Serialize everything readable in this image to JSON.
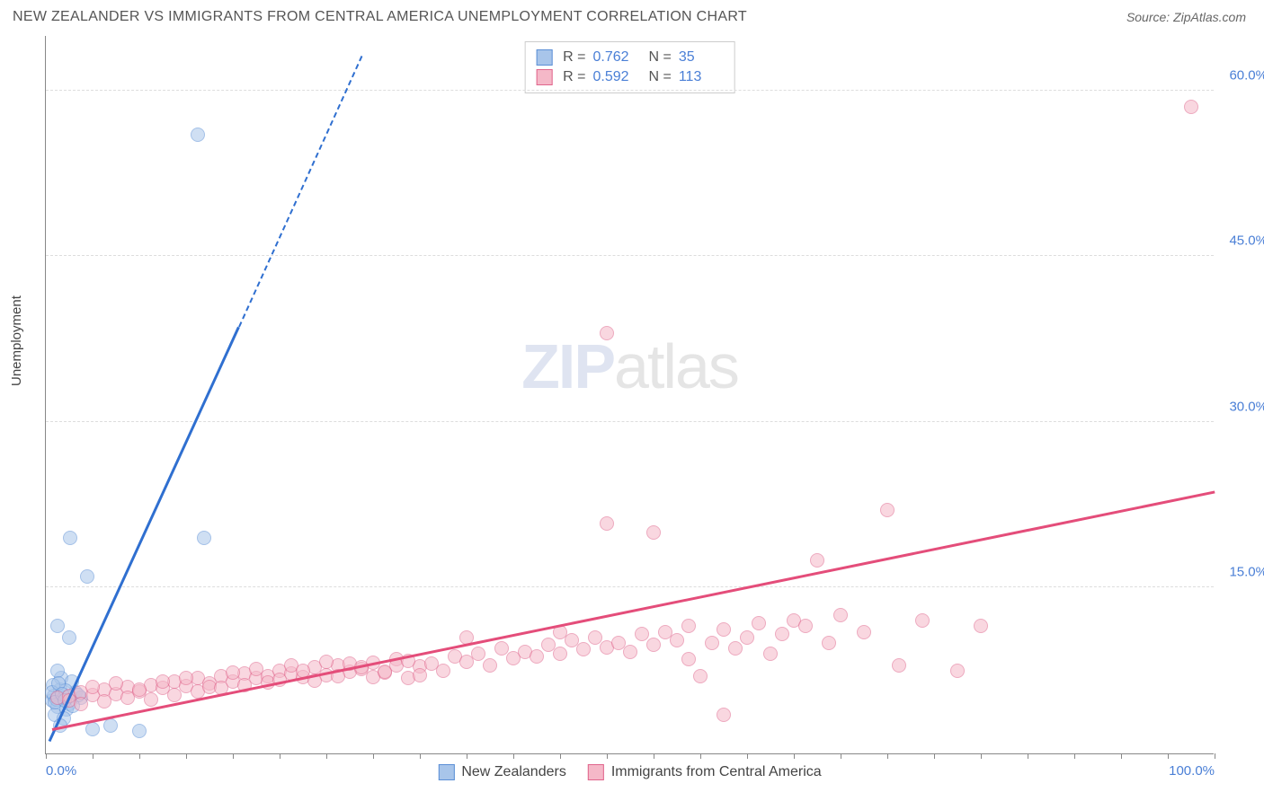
{
  "title": "NEW ZEALANDER VS IMMIGRANTS FROM CENTRAL AMERICA UNEMPLOYMENT CORRELATION CHART",
  "source": "Source: ZipAtlas.com",
  "ylabel": "Unemployment",
  "watermark_zip": "ZIP",
  "watermark_atlas": "atlas",
  "chart": {
    "type": "scatter",
    "background_color": "#ffffff",
    "grid_color": "#dddddd",
    "axis_color": "#888888",
    "xlim": [
      0,
      100
    ],
    "ylim": [
      0,
      65
    ],
    "yticks": [
      15,
      30,
      45,
      60
    ],
    "ytick_labels": [
      "15.0%",
      "30.0%",
      "45.0%",
      "60.0%"
    ],
    "ytick_color": "#4a7fd6",
    "xtick_major": [
      0,
      100
    ],
    "xtick_major_labels": [
      "0.0%",
      "100.0%"
    ],
    "xtick_minor_step": 4,
    "point_radius": 8,
    "series": [
      {
        "name": "New Zealanders",
        "fill": "#a8c5ea",
        "stroke": "#5b8fd6",
        "fill_opacity": 0.55,
        "R": "0.762",
        "N": "35",
        "trend": {
          "x1": 0.3,
          "y1": 1.0,
          "x2": 16.5,
          "y2": 38.5,
          "color": "#2f6fd0",
          "dash_to_x": 27,
          "dash_to_y": 63
        },
        "points": [
          [
            0.5,
            4.8
          ],
          [
            0.7,
            5.2
          ],
          [
            1.0,
            4.2
          ],
          [
            1.2,
            5.8
          ],
          [
            0.8,
            3.5
          ],
          [
            1.5,
            5.0
          ],
          [
            2.0,
            4.5
          ],
          [
            1.3,
            6.8
          ],
          [
            2.5,
            5.5
          ],
          [
            0.6,
            6.2
          ],
          [
            1.8,
            4.0
          ],
          [
            1.0,
            7.5
          ],
          [
            3.0,
            5.0
          ],
          [
            2.2,
            6.5
          ],
          [
            1.5,
            3.2
          ],
          [
            3.5,
            16.0
          ],
          [
            1.0,
            11.5
          ],
          [
            2.0,
            10.5
          ],
          [
            1.2,
            2.5
          ],
          [
            4.0,
            2.2
          ],
          [
            5.5,
            2.5
          ],
          [
            8.0,
            2.0
          ],
          [
            2.8,
            5.3
          ],
          [
            0.9,
            4.9
          ],
          [
            1.7,
            5.7
          ],
          [
            2.3,
            4.3
          ],
          [
            0.5,
            5.5
          ],
          [
            1.1,
            6.3
          ],
          [
            1.9,
            5.1
          ],
          [
            0.8,
            4.6
          ],
          [
            1.4,
            5.4
          ],
          [
            2.1,
            19.5
          ],
          [
            13.0,
            56.0
          ],
          [
            13.5,
            19.5
          ],
          [
            1.6,
            4.8
          ]
        ]
      },
      {
        "name": "Immigrants from Central America",
        "fill": "#f5b8c8",
        "stroke": "#e0658c",
        "fill_opacity": 0.55,
        "R": "0.592",
        "N": "113",
        "trend": {
          "x1": 0.5,
          "y1": 2.0,
          "x2": 100,
          "y2": 23.5,
          "color": "#e44d7a"
        },
        "points": [
          [
            1,
            5.0
          ],
          [
            2,
            5.2
          ],
          [
            3,
            5.5
          ],
          [
            4,
            5.3
          ],
          [
            5,
            5.8
          ],
          [
            6,
            5.4
          ],
          [
            7,
            6.0
          ],
          [
            8,
            5.6
          ],
          [
            9,
            6.2
          ],
          [
            10,
            5.9
          ],
          [
            11,
            6.5
          ],
          [
            12,
            6.1
          ],
          [
            13,
            6.8
          ],
          [
            14,
            6.3
          ],
          [
            15,
            7.0
          ],
          [
            16,
            6.5
          ],
          [
            17,
            7.2
          ],
          [
            18,
            6.8
          ],
          [
            19,
            7.0
          ],
          [
            20,
            7.5
          ],
          [
            21,
            7.2
          ],
          [
            22,
            6.9
          ],
          [
            23,
            7.8
          ],
          [
            24,
            7.1
          ],
          [
            25,
            8.0
          ],
          [
            26,
            7.4
          ],
          [
            27,
            7.6
          ],
          [
            28,
            8.2
          ],
          [
            29,
            7.3
          ],
          [
            30,
            8.5
          ],
          [
            31,
            6.8
          ],
          [
            32,
            7.9
          ],
          [
            33,
            8.1
          ],
          [
            34,
            7.5
          ],
          [
            35,
            8.8
          ],
          [
            36,
            8.3
          ],
          [
            36,
            10.5
          ],
          [
            37,
            9.0
          ],
          [
            38,
            8.0
          ],
          [
            39,
            9.5
          ],
          [
            40,
            8.6
          ],
          [
            41,
            9.2
          ],
          [
            42,
            8.8
          ],
          [
            43,
            9.8
          ],
          [
            44,
            9.0
          ],
          [
            44,
            11.0
          ],
          [
            45,
            10.2
          ],
          [
            46,
            9.4
          ],
          [
            47,
            10.5
          ],
          [
            48,
            9.6
          ],
          [
            48,
            20.8
          ],
          [
            49,
            10.0
          ],
          [
            50,
            9.2
          ],
          [
            51,
            10.8
          ],
          [
            52,
            9.8
          ],
          [
            52,
            20.0
          ],
          [
            53,
            11.0
          ],
          [
            54,
            10.2
          ],
          [
            55,
            8.5
          ],
          [
            55,
            11.5
          ],
          [
            56,
            7.0
          ],
          [
            57,
            10.0
          ],
          [
            58,
            11.2
          ],
          [
            59,
            9.5
          ],
          [
            60,
            10.5
          ],
          [
            61,
            11.8
          ],
          [
            62,
            9.0
          ],
          [
            63,
            10.8
          ],
          [
            64,
            12.0
          ],
          [
            65,
            11.5
          ],
          [
            66,
            17.5
          ],
          [
            67,
            10.0
          ],
          [
            68,
            12.5
          ],
          [
            70,
            11.0
          ],
          [
            72,
            22.0
          ],
          [
            73,
            8.0
          ],
          [
            75,
            12.0
          ],
          [
            78,
            7.5
          ],
          [
            80,
            11.5
          ],
          [
            58,
            3.5
          ],
          [
            48,
            38.0
          ],
          [
            98,
            58.5
          ],
          [
            2,
            4.8
          ],
          [
            3,
            4.5
          ],
          [
            4,
            6.0
          ],
          [
            5,
            4.7
          ],
          [
            6,
            6.3
          ],
          [
            7,
            5.0
          ],
          [
            8,
            5.8
          ],
          [
            9,
            4.9
          ],
          [
            10,
            6.5
          ],
          [
            11,
            5.3
          ],
          [
            12,
            6.8
          ],
          [
            13,
            5.6
          ],
          [
            14,
            6.0
          ],
          [
            15,
            5.9
          ],
          [
            16,
            7.3
          ],
          [
            17,
            6.2
          ],
          [
            18,
            7.6
          ],
          [
            19,
            6.4
          ],
          [
            20,
            6.7
          ],
          [
            21,
            8.0
          ],
          [
            22,
            7.5
          ],
          [
            23,
            6.6
          ],
          [
            24,
            8.3
          ],
          [
            25,
            7.0
          ],
          [
            26,
            8.1
          ],
          [
            27,
            7.8
          ],
          [
            28,
            6.9
          ],
          [
            29,
            7.4
          ],
          [
            30,
            8.0
          ],
          [
            31,
            8.4
          ],
          [
            32,
            7.1
          ]
        ]
      }
    ]
  },
  "legend_bottom": [
    {
      "label": "New Zealanders",
      "fill": "#a8c5ea",
      "stroke": "#5b8fd6"
    },
    {
      "label": "Immigrants from Central America",
      "fill": "#f5b8c8",
      "stroke": "#e0658c"
    }
  ]
}
